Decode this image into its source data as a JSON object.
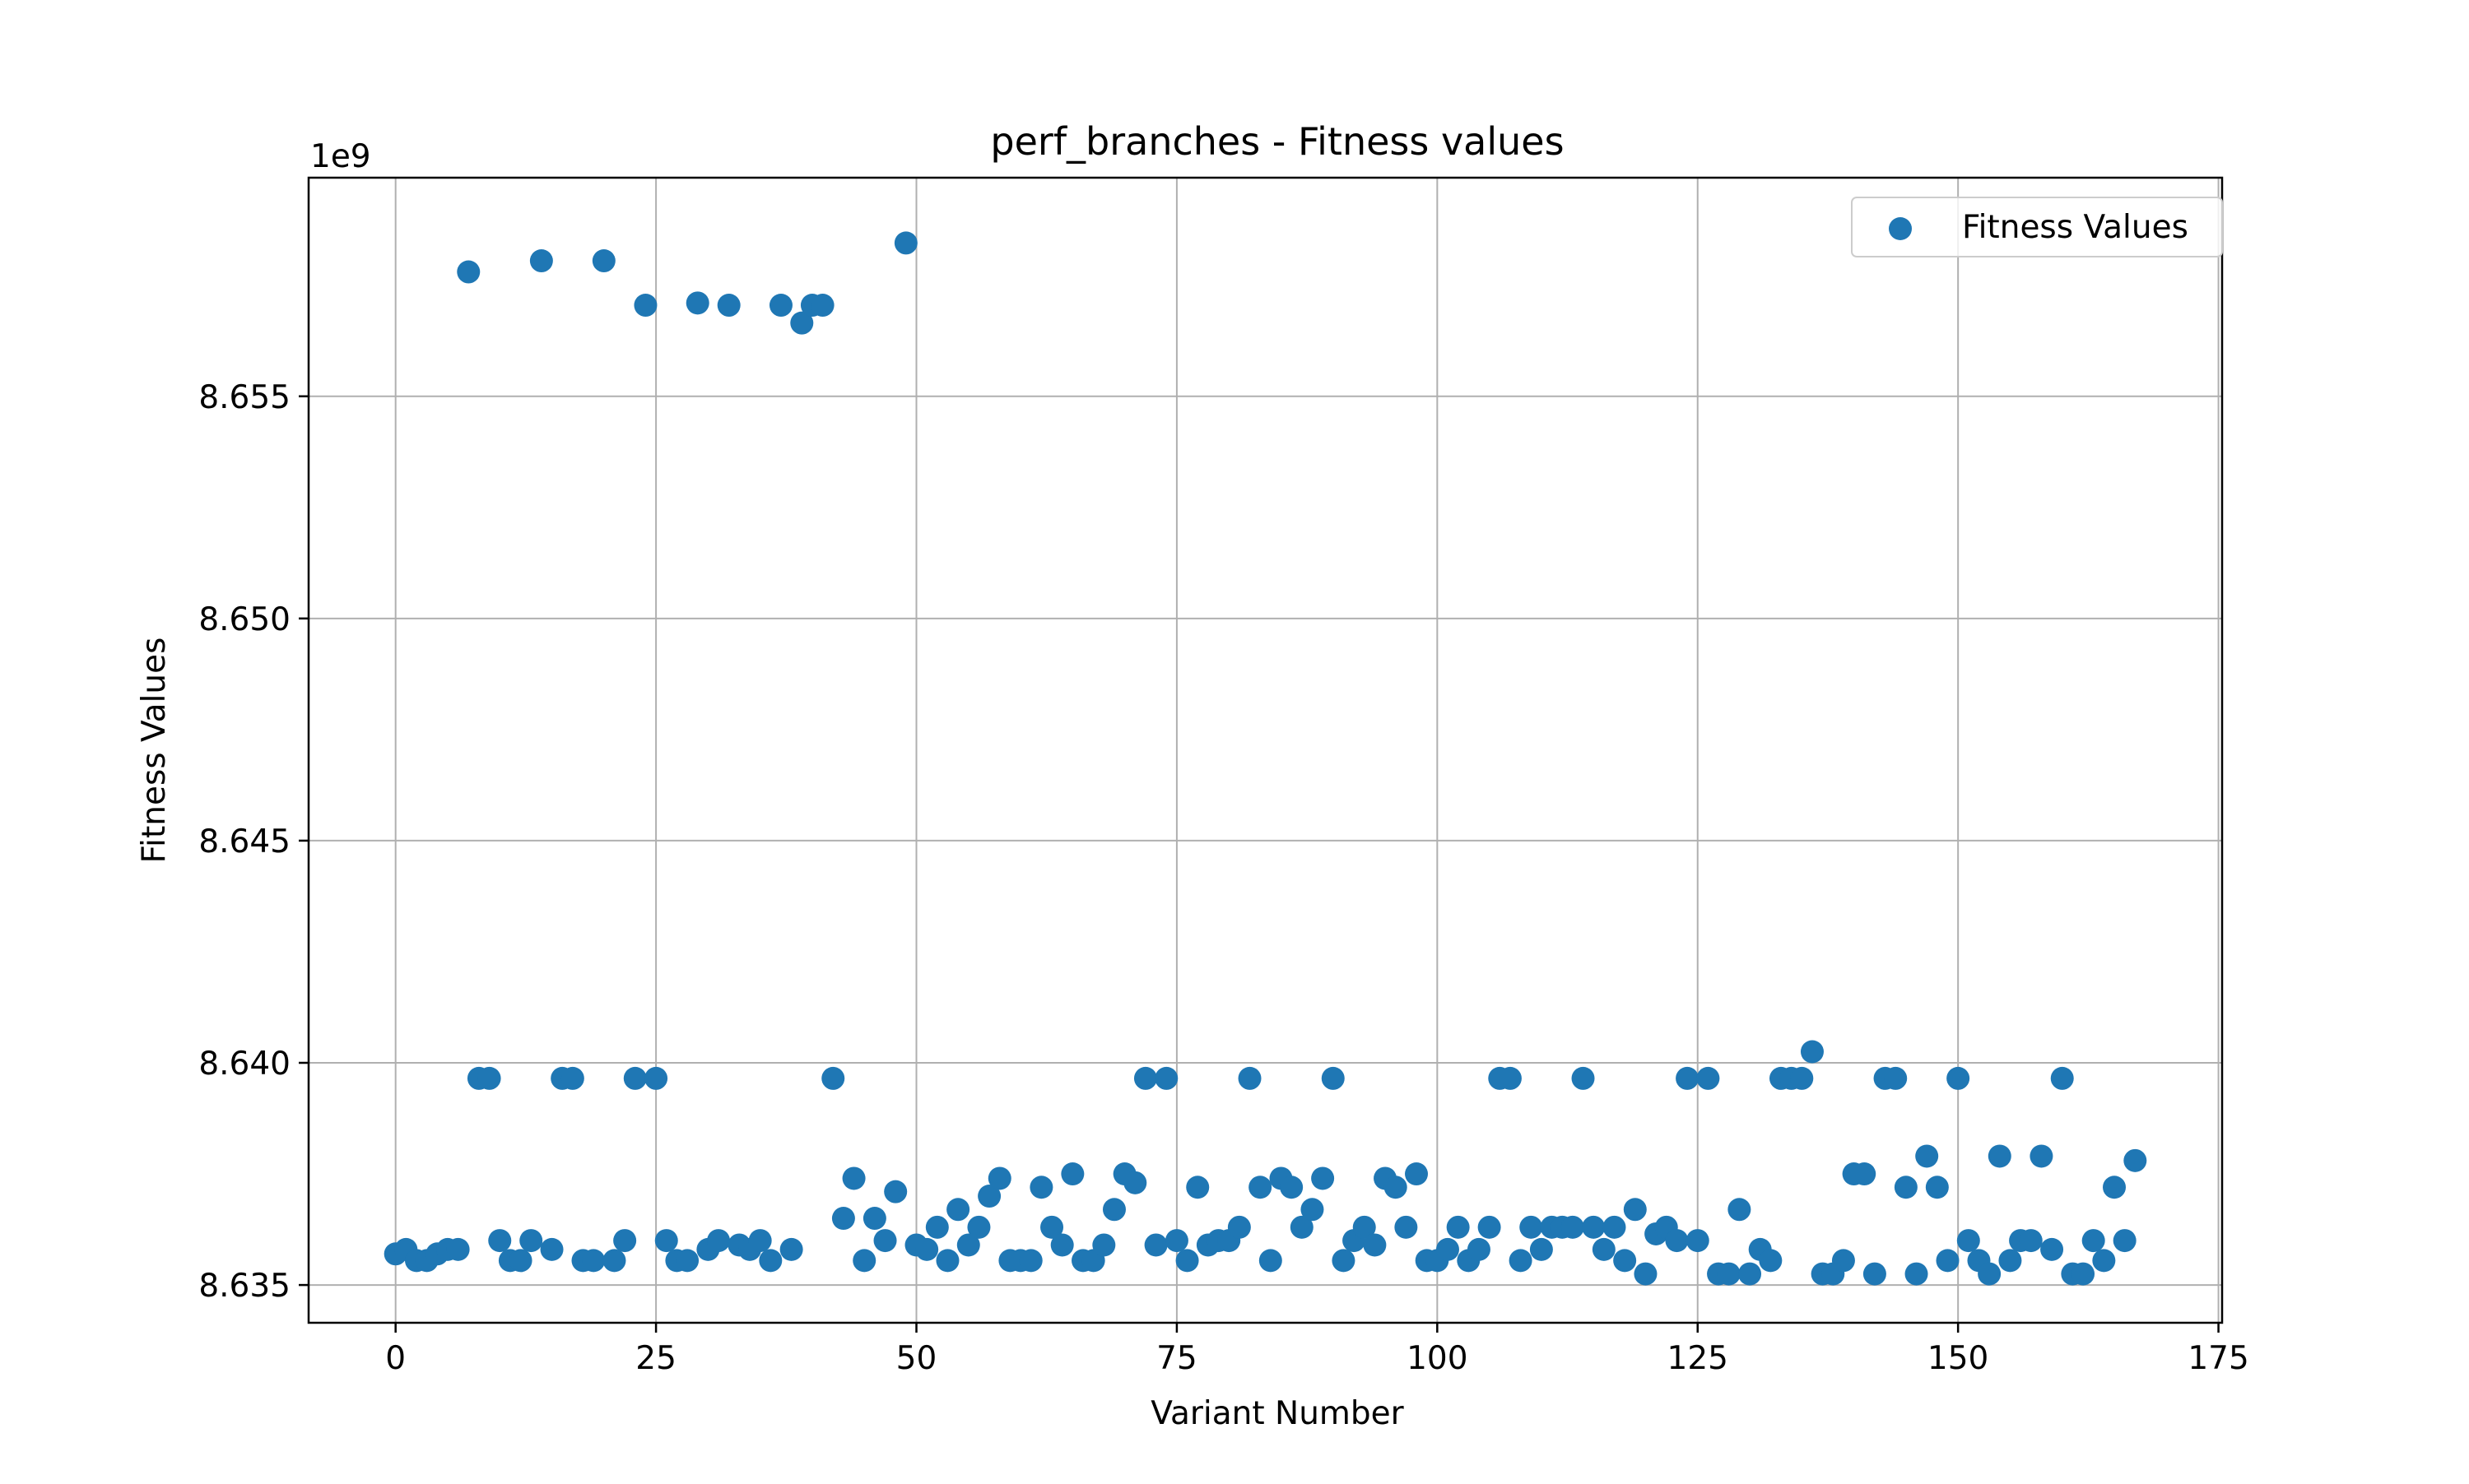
{
  "chart_data": {
    "type": "scatter",
    "title": "perf_branches - Fitness values",
    "xlabel": "Variant Number",
    "ylabel": "Fitness Values",
    "y_offset_label": "1e9",
    "xlim": [
      -8.35,
      175.35
    ],
    "ylim": [
      8.63415,
      8.65992
    ],
    "x_ticks": [
      0,
      25,
      50,
      75,
      100,
      125,
      150,
      175
    ],
    "y_ticks": [
      8.635,
      8.64,
      8.645,
      8.65,
      8.655
    ],
    "y_tick_labels": [
      "8.635",
      "8.640",
      "8.645",
      "8.650",
      "8.655"
    ],
    "grid": true,
    "legend_position": "upper-right",
    "marker_color": "#1f77b4",
    "series": [
      {
        "name": "Fitness Values",
        "x": [
          0,
          1,
          2,
          3,
          4,
          5,
          6,
          7,
          8,
          9,
          10,
          11,
          12,
          13,
          14,
          15,
          16,
          17,
          18,
          19,
          20,
          21,
          22,
          23,
          24,
          25,
          26,
          27,
          28,
          29,
          30,
          31,
          32,
          33,
          34,
          35,
          36,
          37,
          38,
          39,
          40,
          41,
          42,
          43,
          44,
          45,
          46,
          47,
          48,
          49,
          50,
          51,
          52,
          53,
          54,
          55,
          56,
          57,
          58,
          59,
          60,
          61,
          62,
          63,
          64,
          65,
          66,
          67,
          68,
          69,
          70,
          71,
          72,
          73,
          74,
          75,
          76,
          77,
          78,
          79,
          80,
          81,
          82,
          83,
          84,
          85,
          86,
          87,
          88,
          89,
          90,
          91,
          92,
          93,
          94,
          95,
          96,
          97,
          98,
          99,
          100,
          101,
          102,
          103,
          104,
          105,
          106,
          107,
          108,
          109,
          110,
          111,
          112,
          113,
          114,
          115,
          116,
          117,
          118,
          119,
          120,
          121,
          122,
          123,
          124,
          125,
          126,
          127,
          128,
          129,
          130,
          131,
          132,
          133,
          134,
          135,
          136,
          137,
          138,
          139,
          140,
          141,
          142,
          143,
          144,
          145,
          146,
          147,
          148,
          149,
          150,
          151,
          152,
          153,
          154,
          155,
          156,
          157,
          158,
          159,
          160,
          161,
          162,
          163,
          164,
          165,
          166,
          167
        ],
        "y": [
          8.6357,
          8.6358,
          8.63555,
          8.63555,
          8.6357,
          8.6358,
          8.6358,
          8.6578,
          8.63965,
          8.63965,
          8.636,
          8.63555,
          8.63555,
          8.636,
          8.65805,
          8.6358,
          8.63965,
          8.63965,
          8.63555,
          8.63555,
          8.65805,
          8.63555,
          8.636,
          8.63965,
          8.65705,
          8.63965,
          8.636,
          8.63555,
          8.63555,
          8.6571,
          8.6358,
          8.636,
          8.65705,
          8.6359,
          8.6358,
          8.636,
          8.63555,
          8.65705,
          8.6358,
          8.65665,
          8.65705,
          8.65705,
          8.63965,
          8.6365,
          8.6374,
          8.63555,
          8.6365,
          8.636,
          8.6371,
          8.65845,
          8.6359,
          8.6358,
          8.6363,
          8.63555,
          8.6367,
          8.6359,
          8.6363,
          8.637,
          8.6374,
          8.63555,
          8.63555,
          8.63555,
          8.6372,
          8.6363,
          8.6359,
          8.6375,
          8.63555,
          8.63555,
          8.6359,
          8.6367,
          8.6375,
          8.6373,
          8.63965,
          8.6359,
          8.63965,
          8.636,
          8.63555,
          8.6372,
          8.6359,
          8.636,
          8.636,
          8.6363,
          8.63965,
          8.6372,
          8.63555,
          8.6374,
          8.6372,
          8.6363,
          8.6367,
          8.6374,
          8.63965,
          8.63555,
          8.636,
          8.6363,
          8.6359,
          8.6374,
          8.6372,
          8.6363,
          8.6375,
          8.63555,
          8.63555,
          8.6358,
          8.6363,
          8.63555,
          8.6358,
          8.6363,
          8.63965,
          8.63965,
          8.63555,
          8.6363,
          8.6358,
          8.6363,
          8.6363,
          8.6363,
          8.63965,
          8.6363,
          8.6358,
          8.6363,
          8.63555,
          8.6367,
          8.63525,
          8.63615,
          8.6363,
          8.636,
          8.63965,
          8.636,
          8.63965,
          8.63525,
          8.63525,
          8.6367,
          8.63525,
          8.6358,
          8.63555,
          8.63965,
          8.63965,
          8.63965,
          8.64025,
          8.63525,
          8.63525,
          8.63555,
          8.6375,
          8.6375,
          8.63525,
          8.63965,
          8.63965,
          8.6372,
          8.63525,
          8.6379,
          8.6372,
          8.63555,
          8.63965,
          8.636,
          8.63555,
          8.63525,
          8.6379,
          8.63555,
          8.636,
          8.636,
          8.6379,
          8.6358,
          8.63965,
          8.63525,
          8.63525,
          8.636,
          8.63555,
          8.6372,
          8.636,
          8.6378
        ]
      }
    ]
  }
}
